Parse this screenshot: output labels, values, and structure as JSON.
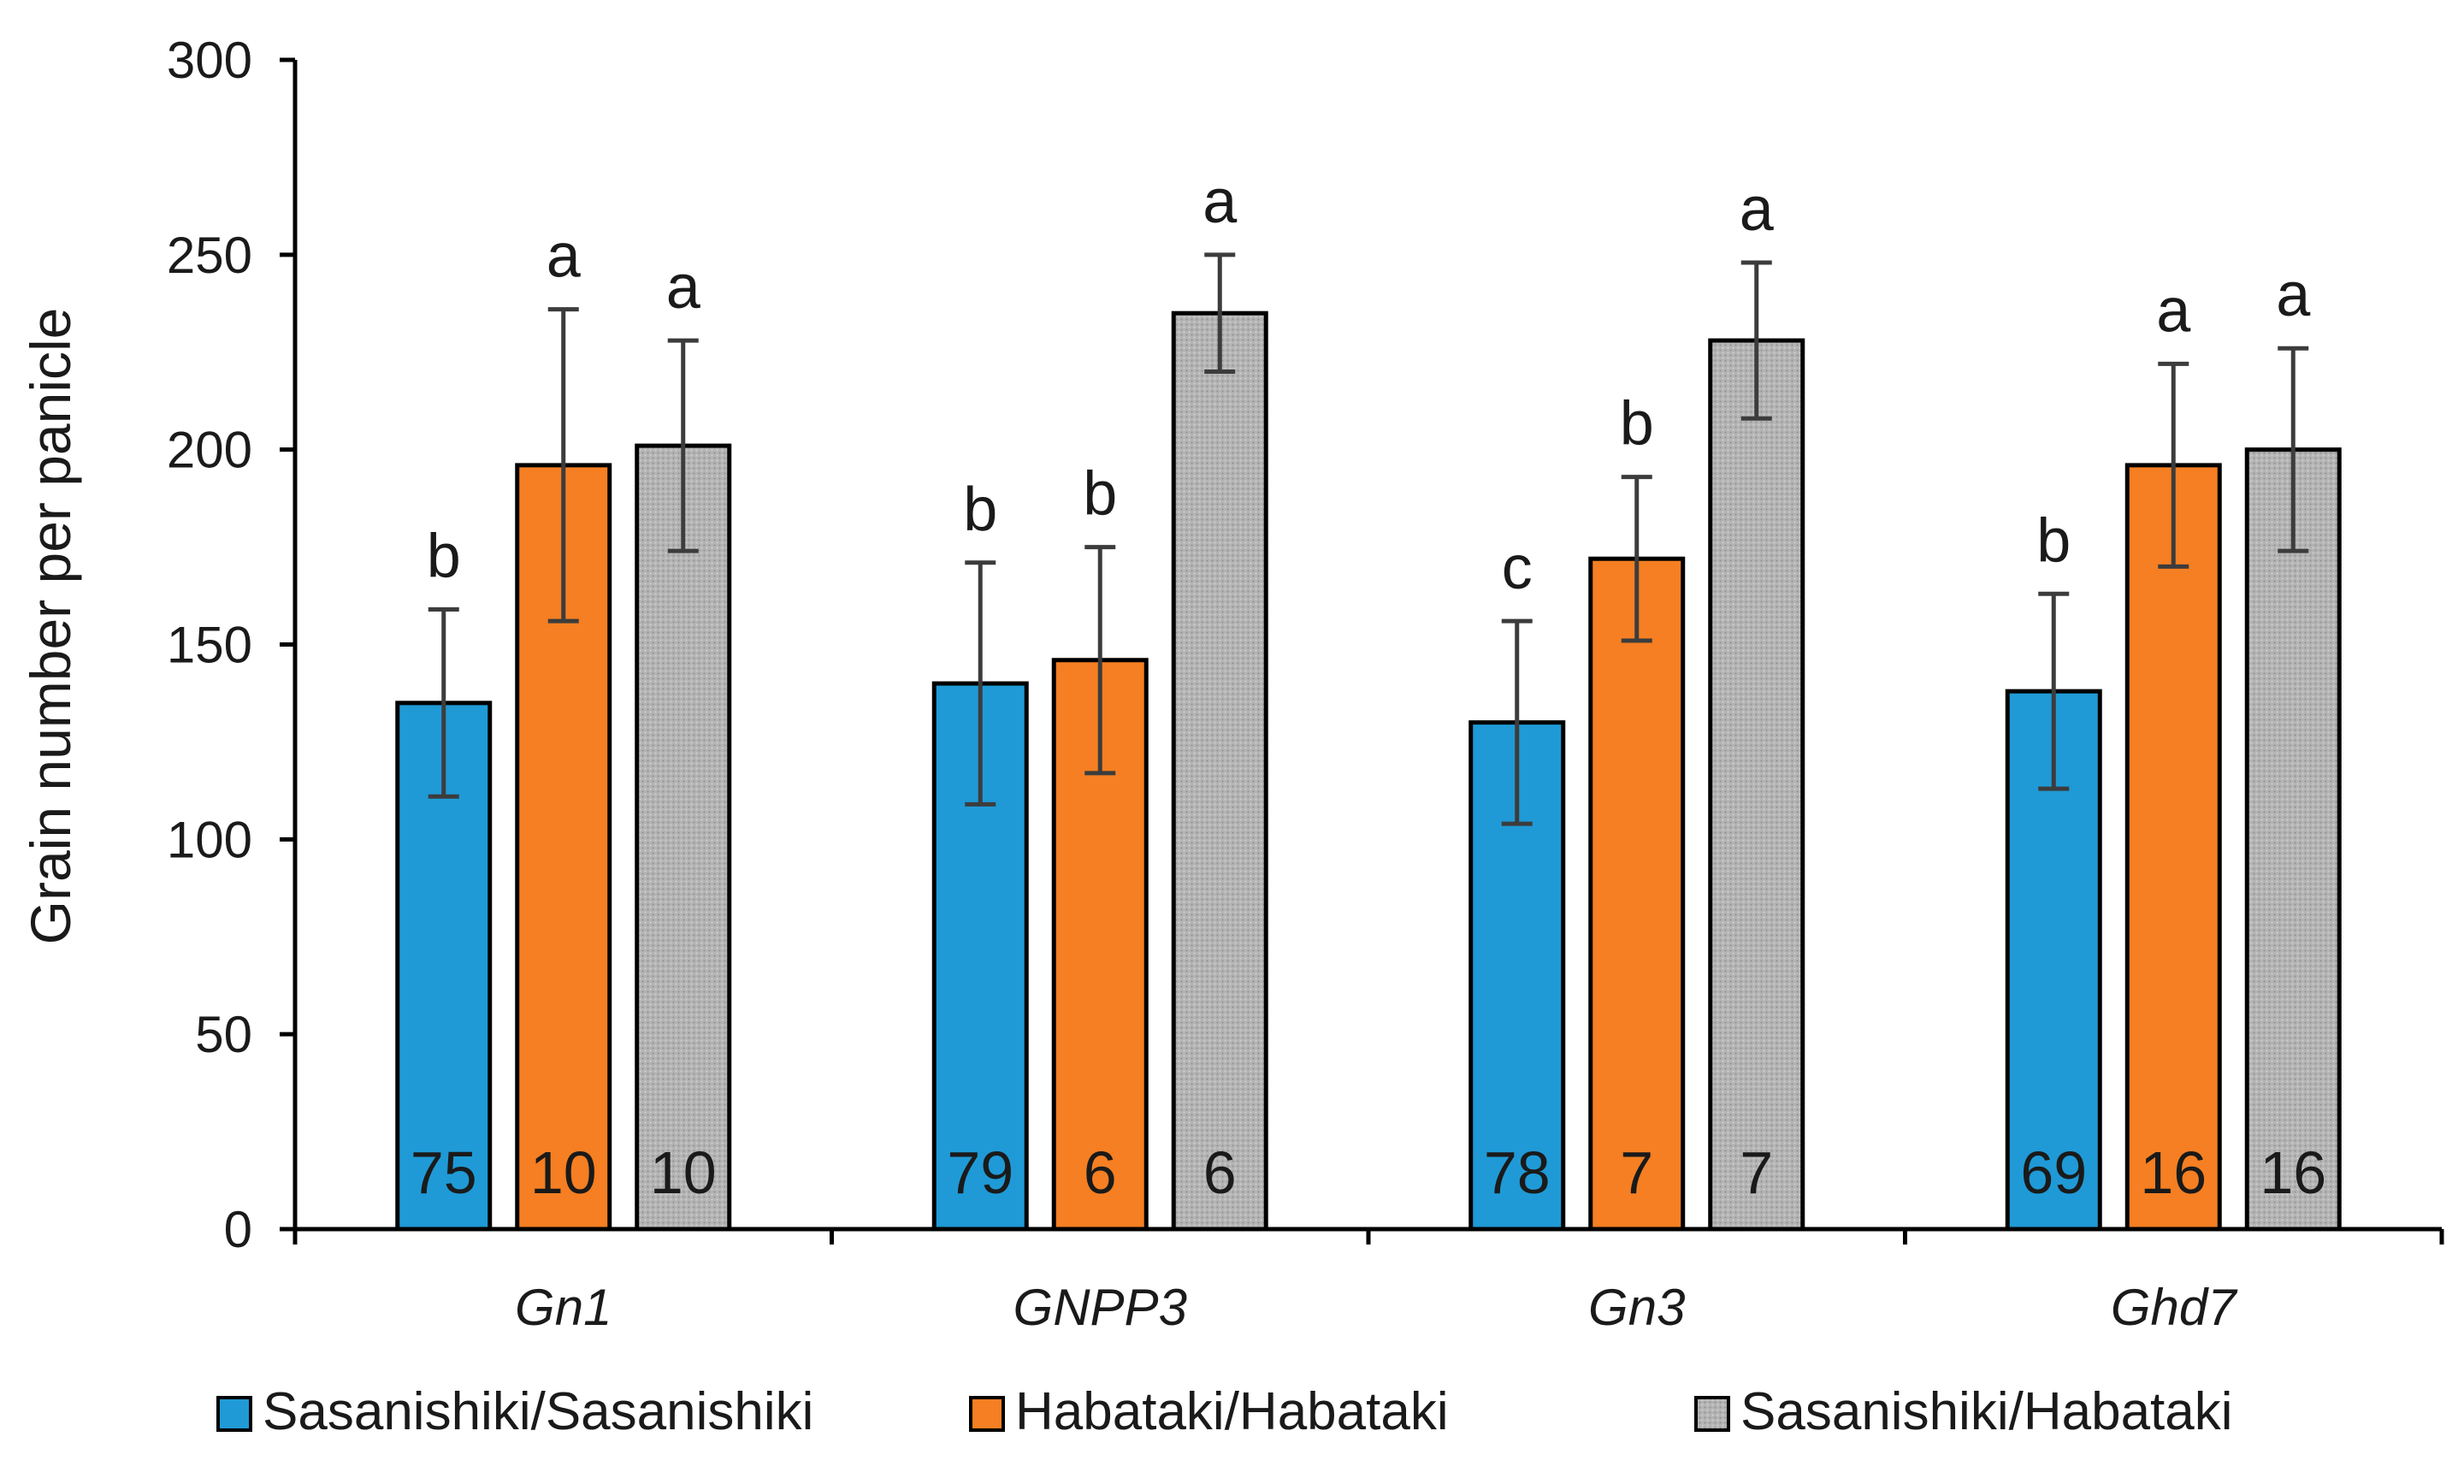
{
  "chart_data": {
    "type": "bar",
    "title": "",
    "xlabel": "",
    "ylabel": "Grain number per panicle",
    "ylim": [
      0,
      300
    ],
    "yticks": [
      0,
      50,
      100,
      150,
      200,
      250,
      300
    ],
    "grid": false,
    "legend_position": "bottom",
    "categories": [
      "Gn1",
      "GNPP3",
      "Gn3",
      "Ghd7"
    ],
    "series": [
      {
        "name": "Sasanishiki/Sasanishiki",
        "color": "#1f9ad6",
        "pattern": "solid",
        "values": [
          135,
          140,
          130,
          138
        ],
        "errors": [
          24,
          31,
          26,
          25
        ],
        "significance": [
          "b",
          "b",
          "c",
          "b"
        ],
        "counts": [
          "75",
          "79",
          "78",
          "69"
        ]
      },
      {
        "name": "Habataki/Habataki",
        "color": "#f57f22",
        "pattern": "solid",
        "values": [
          196,
          146,
          172,
          196
        ],
        "errors": [
          40,
          29,
          21,
          26
        ],
        "significance": [
          "a",
          "b",
          "b",
          "a"
        ],
        "counts": [
          "10",
          "6",
          "7",
          "16"
        ]
      },
      {
        "name": "Sasanishiki/Habataki",
        "color": "#a9a9a9",
        "pattern": "dotted",
        "values": [
          201,
          235,
          228,
          200
        ],
        "errors": [
          27,
          15,
          20,
          26
        ],
        "significance": [
          "a",
          "a",
          "a",
          "a"
        ],
        "counts": [
          "10",
          "6",
          "7",
          "16"
        ]
      }
    ]
  }
}
